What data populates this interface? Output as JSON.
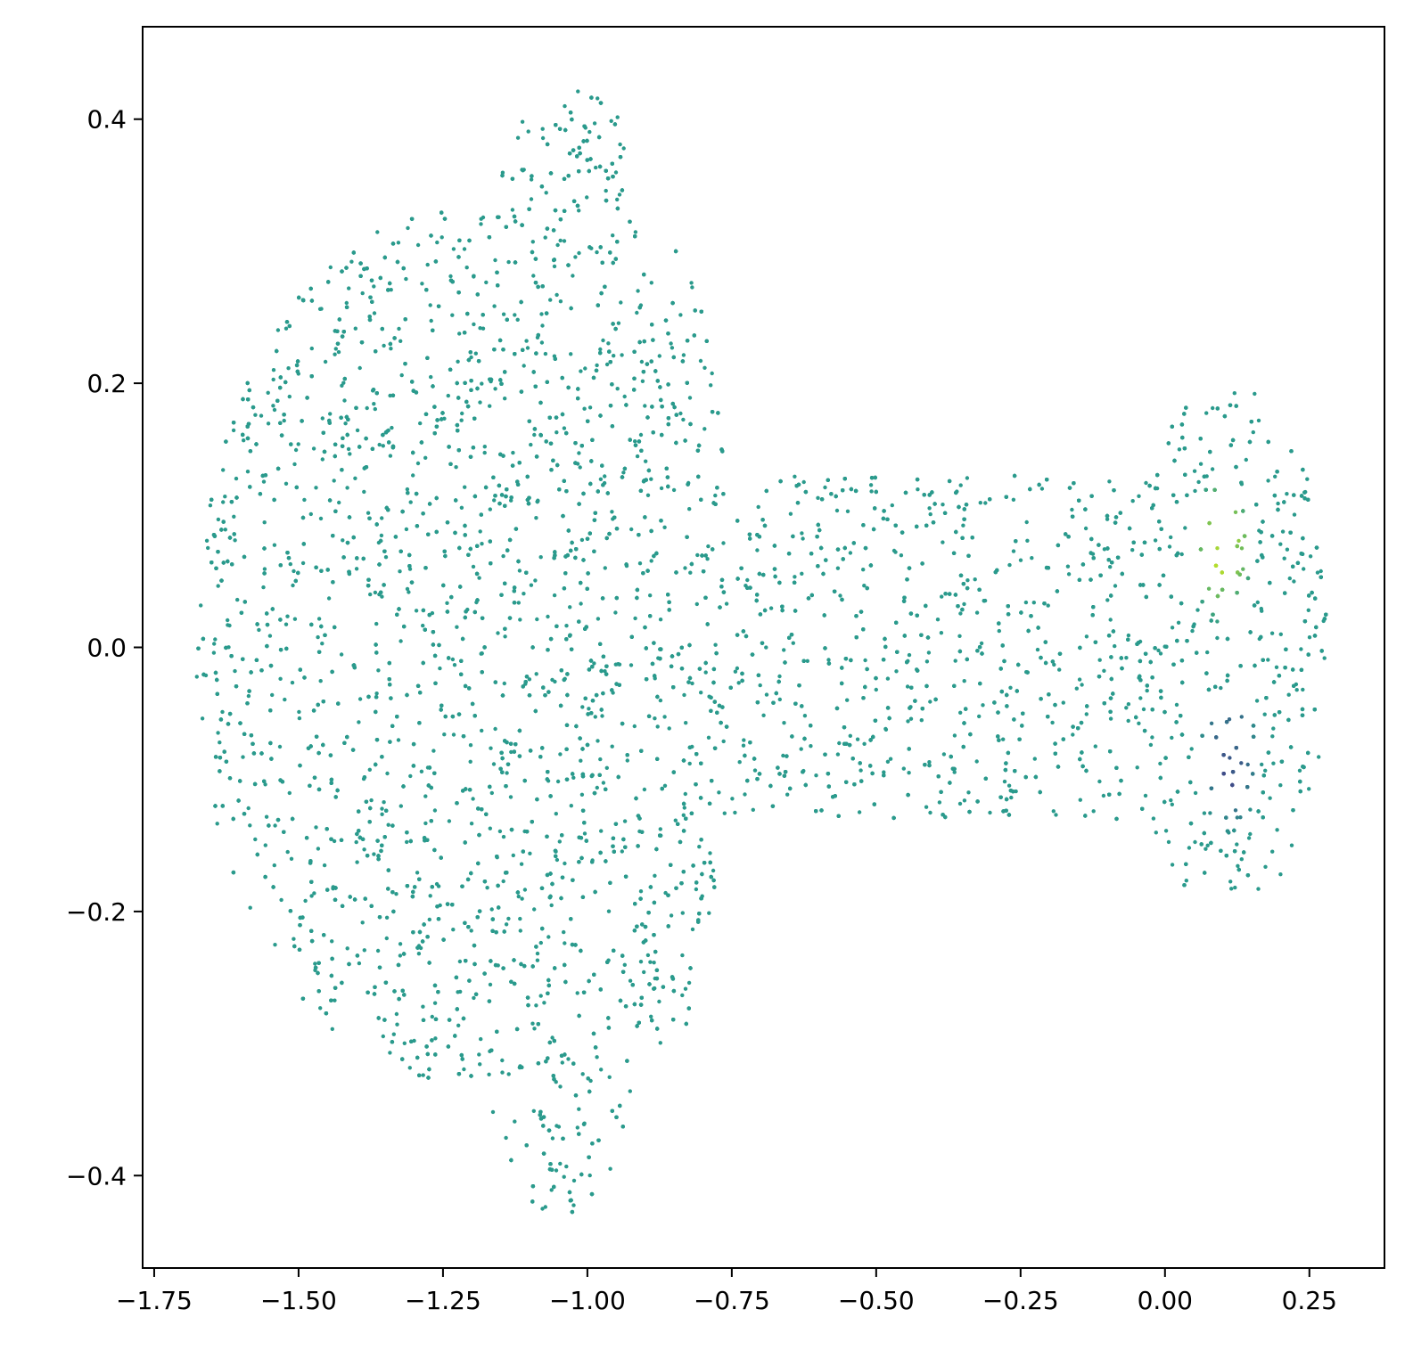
{
  "chart_data": {
    "type": "scatter",
    "title": "",
    "xlabel": "",
    "ylabel": "",
    "xlim": [
      -1.77,
      0.38
    ],
    "ylim": [
      -0.47,
      0.47
    ],
    "grid": false,
    "colormap": "viridis",
    "base_color": "#2a9a8c",
    "xticks": [
      {
        "value": -1.75,
        "label": "−1.75"
      },
      {
        "value": -1.5,
        "label": "−1.50"
      },
      {
        "value": -1.25,
        "label": "−1.25"
      },
      {
        "value": -1.0,
        "label": "−1.00"
      },
      {
        "value": -0.75,
        "label": "−0.75"
      },
      {
        "value": -0.5,
        "label": "−0.50"
      },
      {
        "value": -0.25,
        "label": "−0.25"
      },
      {
        "value": 0.0,
        "label": "0.00"
      },
      {
        "value": 0.25,
        "label": "0.25"
      }
    ],
    "yticks": [
      {
        "value": 0.4,
        "label": "0.4"
      },
      {
        "value": 0.2,
        "label": "0.2"
      },
      {
        "value": 0.0,
        "label": "0.0"
      },
      {
        "value": -0.2,
        "label": "−0.2"
      },
      {
        "value": -0.4,
        "label": "−0.4"
      }
    ],
    "point_cloud": {
      "approx_points": 9000,
      "x_extent": [
        -1.68,
        0.28
      ],
      "y_extent": [
        -0.43,
        0.43
      ],
      "regions": [
        {
          "shape": "ellipse",
          "cx": -1.24,
          "cy": 0.0,
          "rx": 0.44,
          "ry": 0.33
        },
        {
          "shape": "ellipse",
          "cx": -1.03,
          "cy": 0.31,
          "rx": 0.13,
          "ry": 0.12
        },
        {
          "shape": "ellipse",
          "cx": -1.05,
          "cy": -0.31,
          "rx": 0.13,
          "ry": 0.12
        },
        {
          "shape": "ellipse",
          "cx": -0.87,
          "cy": 0.0,
          "rx": 0.12,
          "ry": 0.31
        },
        {
          "shape": "rect",
          "x0": -0.75,
          "x1": 0.0,
          "y0": -0.13,
          "y1": 0.13
        },
        {
          "shape": "ellipse",
          "cx": 0.11,
          "cy": 0.0,
          "rx": 0.18,
          "ry": 0.2
        }
      ],
      "highlights": [
        {
          "name": "high",
          "cx": 0.1,
          "cy": 0.075,
          "radius": 0.06,
          "color": "#b5de2b"
        },
        {
          "name": "low",
          "cx": 0.11,
          "cy": -0.085,
          "radius": 0.06,
          "color": "#414487"
        }
      ]
    }
  }
}
